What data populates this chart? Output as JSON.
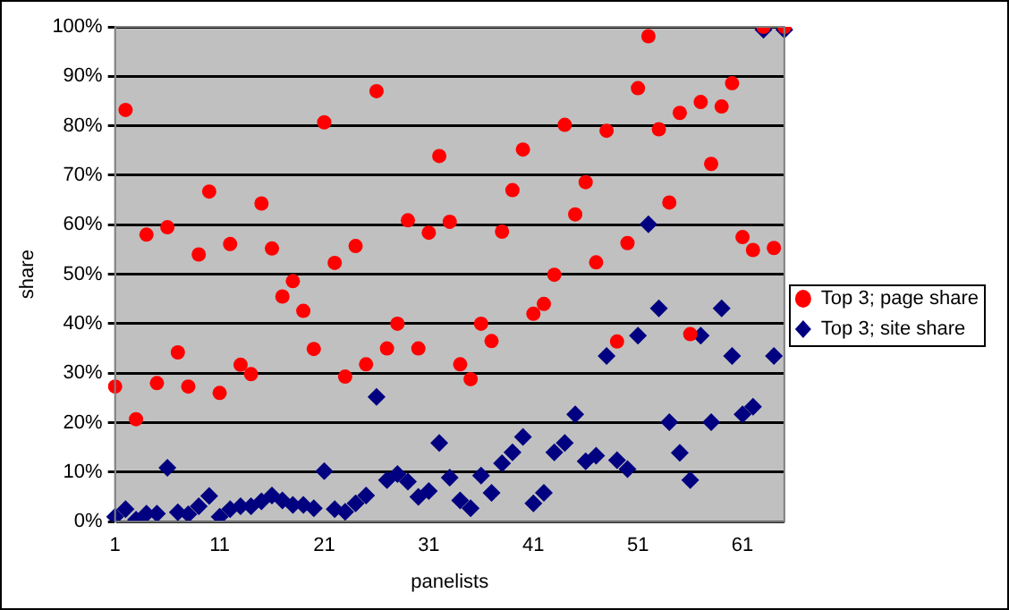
{
  "chart_data": {
    "type": "scatter",
    "xlabel": "panelists",
    "ylabel": "share",
    "categories": [
      "1",
      null,
      null,
      null,
      null,
      null,
      null,
      null,
      null,
      null,
      "11",
      null,
      null,
      null,
      null,
      null,
      null,
      null,
      null,
      null,
      "21",
      null,
      null,
      null,
      null,
      null,
      null,
      null,
      null,
      null,
      "31",
      null,
      null,
      null,
      null,
      null,
      null,
      null,
      null,
      null,
      "41",
      null,
      null,
      null,
      null,
      null,
      null,
      null,
      null,
      null,
      "51",
      null,
      null,
      null,
      null,
      null,
      null,
      null,
      null,
      null,
      "61",
      null,
      null,
      null,
      null
    ],
    "series": [
      {
        "name": "Top 3; page share",
        "color": "#ff0000",
        "marker": "circle",
        "values": [
          27.3,
          83.2,
          20.7,
          58,
          28,
          59.5,
          34.2,
          27.3,
          54,
          66.7,
          26,
          56.1,
          31.7,
          29.8,
          64.3,
          55.2,
          45.5,
          48.6,
          42.6,
          34.9,
          80.7,
          52.3,
          29.3,
          55.7,
          31.8,
          87,
          35,
          40,
          60.9,
          35,
          58.4,
          73.9,
          60.6,
          31.8,
          28.8,
          40,
          36.5,
          58.6,
          67,
          75.2,
          42,
          44,
          49.9,
          80.2,
          62.1,
          68.6,
          52.4,
          79,
          36.4,
          56.3,
          87.6,
          98.1,
          79.3,
          64.5,
          82.6,
          37.9,
          84.8,
          72.3,
          83.9,
          88.6,
          57.5,
          54.9,
          100,
          55.3,
          100
        ]
      },
      {
        "name": "Top 3; site share",
        "color": "#000080",
        "marker": "diamond",
        "values": [
          1,
          2.5,
          0.4,
          1.6,
          1.6,
          10.9,
          1.9,
          1.5,
          3.1,
          5.2,
          1,
          2.5,
          3.1,
          3.1,
          4.1,
          5.3,
          4.3,
          3.4,
          3.4,
          2.7,
          10.2,
          2.5,
          2,
          3.7,
          5.3,
          25.2,
          8.4,
          9.6,
          8.1,
          5,
          6.2,
          15.9,
          8.9,
          4.3,
          2.7,
          9.3,
          5.8,
          11.8,
          14,
          17.1,
          3.7,
          5.8,
          14,
          15.9,
          21.7,
          12.2,
          13.3,
          33.5,
          12.4,
          10.6,
          37.6,
          60.1,
          43.1,
          20.1,
          13.9,
          8.4,
          37.6,
          20.1,
          43.1,
          33.5,
          21.7,
          23.2,
          99.4,
          33.5,
          99.4
        ]
      }
    ],
    "ylim": [
      0,
      100
    ],
    "yticks": [
      {
        "value": 0,
        "label": "0%"
      },
      {
        "value": 10,
        "label": "10%"
      },
      {
        "value": 20,
        "label": "20%"
      },
      {
        "value": 30,
        "label": "30%"
      },
      {
        "value": 40,
        "label": "40%"
      },
      {
        "value": 50,
        "label": "50%"
      },
      {
        "value": 60,
        "label": "60%"
      },
      {
        "value": 70,
        "label": "70%"
      },
      {
        "value": 80,
        "label": "80%"
      },
      {
        "value": 90,
        "label": "90%"
      },
      {
        "value": 100,
        "label": "100%"
      }
    ],
    "grid": "y",
    "legend": "right"
  }
}
